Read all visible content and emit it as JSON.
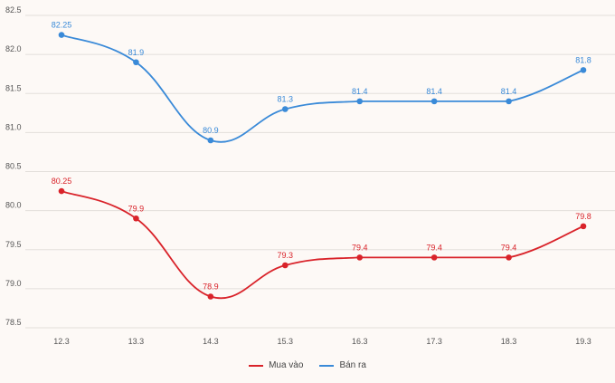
{
  "chart_data": {
    "type": "line",
    "categories": [
      "12.3",
      "13.3",
      "14.3",
      "15.3",
      "16.3",
      "17.3",
      "18.3",
      "19.3"
    ],
    "series": [
      {
        "name": "Mua vào",
        "color": "#d9232a",
        "values": [
          80.25,
          79.9,
          78.9,
          79.3,
          79.4,
          79.4,
          79.4,
          79.8
        ],
        "labels": [
          "80.25",
          "79.9",
          "78.9",
          "79.3",
          "79.4",
          "79.4",
          "79.4",
          "79.8"
        ]
      },
      {
        "name": "Bán ra",
        "color": "#3a8ad8",
        "values": [
          82.25,
          81.9,
          80.9,
          81.3,
          81.4,
          81.4,
          81.4,
          81.8
        ],
        "labels": [
          "82.25",
          "81.9",
          "80.9",
          "81.3",
          "81.4",
          "81.4",
          "81.4",
          "81.8"
        ]
      }
    ],
    "yticks": [
      "78.5",
      "79.0",
      "79.5",
      "80.0",
      "80.5",
      "81.0",
      "81.5",
      "82.0",
      "82.5"
    ],
    "ylim": [
      78.5,
      82.5
    ],
    "grid": true,
    "legend_position": "bottom"
  }
}
